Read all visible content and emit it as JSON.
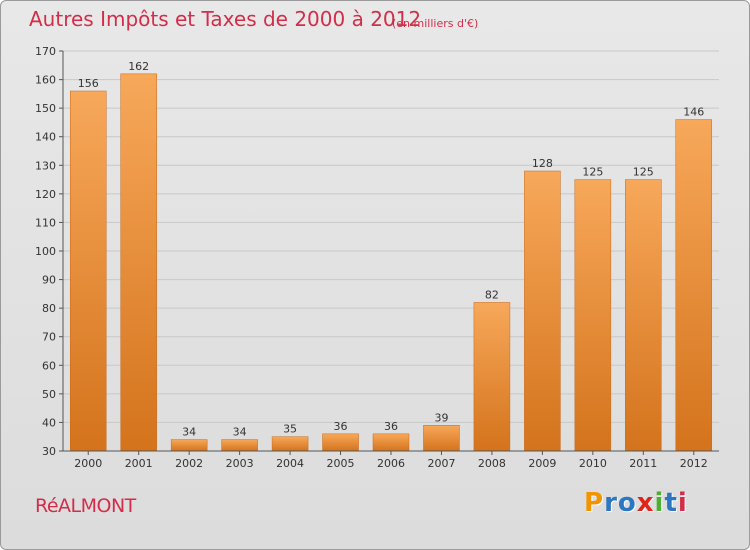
{
  "header": {
    "title": "Autres Impôts et Taxes de 2000 à 2012",
    "subtitle": "(en milliers d'€)"
  },
  "footer": {
    "commune": "RéALMONT",
    "brand": "Proxiti",
    "brand_colors": [
      "#f29400",
      "#2d76c2",
      "#2d76c2",
      "#e2231a",
      "#4caf32",
      "#2d76c2",
      "#d22e4a"
    ]
  },
  "colors": {
    "bar_light": "#f7a85a",
    "bar_dark": "#d4731c",
    "title": "#d22e4a",
    "grid": "#c8c8c8"
  },
  "chart_data": {
    "type": "bar",
    "title": "Autres Impôts et Taxes de 2000 à 2012",
    "subtitle": "(en milliers d'€)",
    "categories": [
      "2000",
      "2001",
      "2002",
      "2003",
      "2004",
      "2005",
      "2006",
      "2007",
      "2008",
      "2009",
      "2010",
      "2011",
      "2012"
    ],
    "values": [
      156,
      162,
      34,
      34,
      35,
      36,
      36,
      39,
      82,
      128,
      125,
      125,
      146
    ],
    "ylim": [
      30,
      170
    ],
    "yticks": [
      30,
      40,
      50,
      60,
      70,
      80,
      90,
      100,
      110,
      120,
      130,
      140,
      150,
      160,
      170
    ],
    "grid": true,
    "data_labels": true
  }
}
